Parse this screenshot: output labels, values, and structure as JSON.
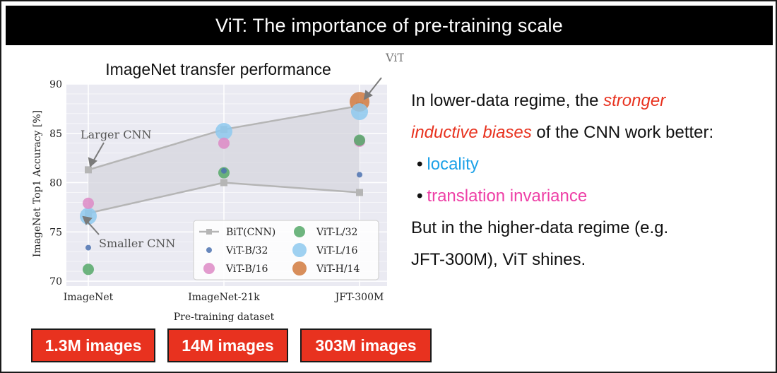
{
  "slide_title": "ViT: The importance of pre-training scale",
  "chart_data": {
    "type": "scatter",
    "title": "ImageNet transfer performance",
    "xlabel": "Pre-training dataset",
    "ylabel": "ImageNet Top1 Accuracy [%]",
    "categories": [
      "ImageNet",
      "ImageNet-21k",
      "JFT-300M"
    ],
    "ylim": [
      69.5,
      90
    ],
    "yticks": [
      70,
      75,
      80,
      85,
      90
    ],
    "grid": true,
    "legend_position": "lower-right",
    "shaded_band": true,
    "series": [
      {
        "name": "BiT(CNN)",
        "marker": "square-line",
        "color": "#b5b5b5",
        "subseries": [
          {
            "values": [
              81.3,
              85.4,
              87.8
            ]
          },
          {
            "values": [
              76.9,
              80.0,
              79.0
            ]
          }
        ]
      },
      {
        "name": "ViT-B/32",
        "marker": "circle",
        "color": "#4c72b0",
        "size": 4,
        "values": [
          73.4,
          81.2,
          80.8
        ]
      },
      {
        "name": "ViT-B/16",
        "marker": "circle",
        "color": "#dd8ac5",
        "size": 8,
        "values": [
          77.9,
          84.0,
          84.2
        ]
      },
      {
        "name": "ViT-L/32",
        "marker": "circle",
        "color": "#55a868",
        "size": 8,
        "values": [
          71.2,
          81.0,
          84.3
        ]
      },
      {
        "name": "ViT-L/16",
        "marker": "circle",
        "color": "#8ec9ef",
        "size": 12,
        "values": [
          76.6,
          85.2,
          87.2
        ]
      },
      {
        "name": "ViT-H/14",
        "marker": "circle",
        "color": "#d17a3e",
        "size": 14,
        "values": [
          null,
          null,
          88.2
        ]
      }
    ],
    "annotations": [
      {
        "text": "Larger CNN"
      },
      {
        "text": "Smaller CNN"
      },
      {
        "text": "ViT beats strongest CNN"
      }
    ]
  },
  "dataset_sizes": [
    "1.3M images",
    "14M images",
    "303M images"
  ],
  "text_panel": {
    "line1_a": "In lower-data regime, the ",
    "line1_b": "stronger",
    "line2_a": "inductive biases",
    "line2_b": " of the CNN work better:",
    "bullet_1": "locality",
    "bullet_2": "translation invariance",
    "line5": "But in the higher-data regime (e.g.",
    "line6": "JFT-300M), ViT shines."
  },
  "colors": {
    "title_bar": "#000000",
    "pill": "#e8321f",
    "red_emphasis": "#e8321f",
    "blue_bullet": "#1ea2e8",
    "pink_bullet": "#ee3fa6"
  }
}
